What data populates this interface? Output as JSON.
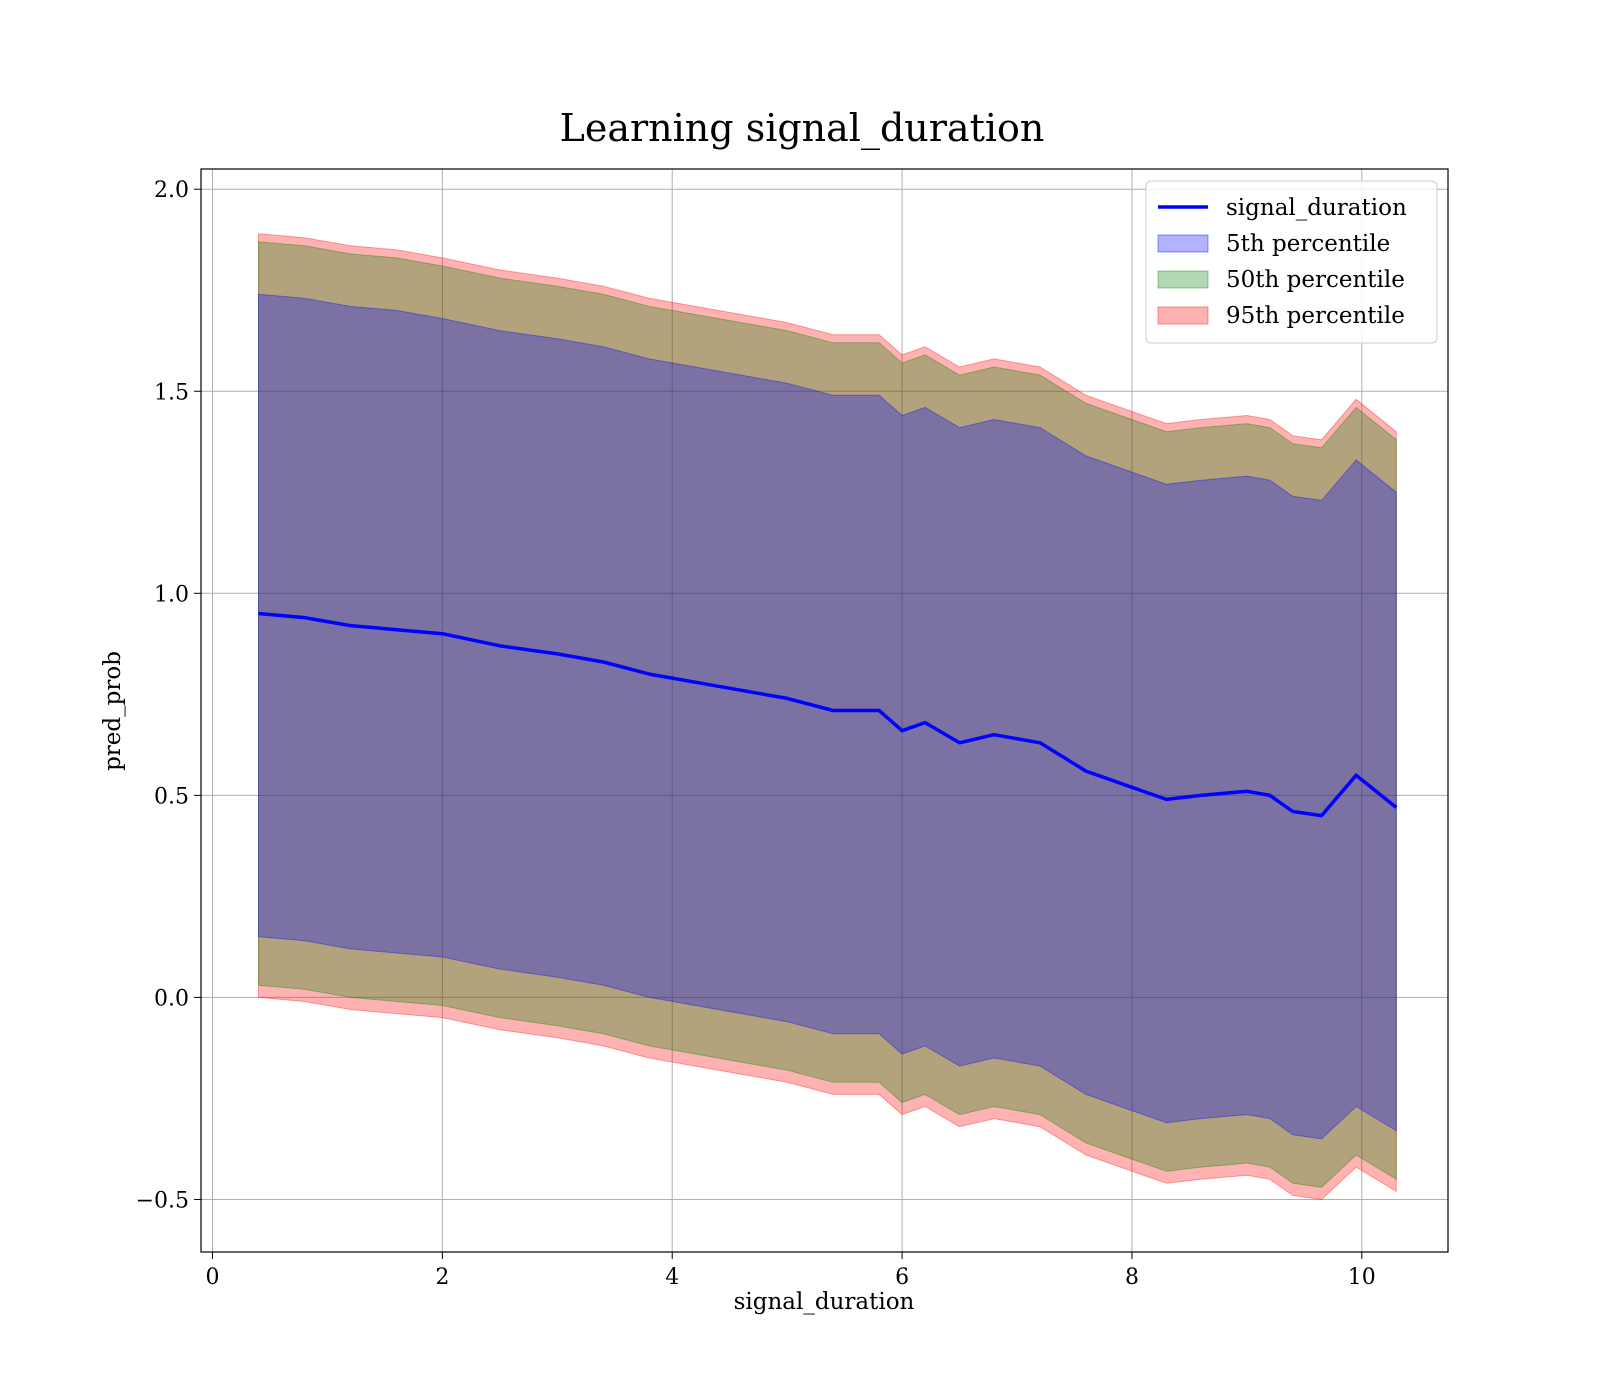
{
  "chart_data": {
    "type": "area",
    "title": "Learning signal_duration",
    "xlabel": "signal_duration",
    "ylabel": "pred_prob",
    "xlim": [
      -0.1,
      10.75
    ],
    "ylim": [
      -0.63,
      2.05
    ],
    "grid": true,
    "legend_position": "top-right",
    "x_ticks": [
      {
        "value": 0,
        "label": "0"
      },
      {
        "value": 2,
        "label": "2"
      },
      {
        "value": 4,
        "label": "4"
      },
      {
        "value": 6,
        "label": "6"
      },
      {
        "value": 8,
        "label": "8"
      },
      {
        "value": 10,
        "label": "10"
      }
    ],
    "y_ticks": [
      {
        "value": -0.5,
        "label": "−0.5"
      },
      {
        "value": 0.0,
        "label": "0.0"
      },
      {
        "value": 0.5,
        "label": "0.5"
      },
      {
        "value": 1.0,
        "label": "1.0"
      },
      {
        "value": 1.5,
        "label": "1.5"
      },
      {
        "value": 2.0,
        "label": "2.0"
      }
    ],
    "x": [
      0.4,
      0.8,
      1.2,
      1.6,
      2.0,
      2.5,
      3.0,
      3.4,
      3.8,
      4.2,
      4.6,
      5.0,
      5.4,
      5.8,
      6.0,
      6.2,
      6.5,
      6.8,
      7.2,
      7.6,
      8.0,
      8.3,
      8.6,
      9.0,
      9.2,
      9.4,
      9.65,
      9.95,
      10.3
    ],
    "series": [
      {
        "name": "signal_duration",
        "kind": "line",
        "color": "#0000ff",
        "values": [
          0.95,
          0.94,
          0.92,
          0.91,
          0.9,
          0.87,
          0.85,
          0.83,
          0.8,
          0.78,
          0.76,
          0.74,
          0.71,
          0.71,
          0.66,
          0.68,
          0.63,
          0.65,
          0.63,
          0.56,
          0.52,
          0.49,
          0.5,
          0.51,
          0.5,
          0.46,
          0.45,
          0.55,
          0.47
        ]
      },
      {
        "name": "95th percentile",
        "kind": "band",
        "color": "#ff0000",
        "opacity": 0.3,
        "upper": [
          1.89,
          1.88,
          1.86,
          1.85,
          1.83,
          1.8,
          1.78,
          1.76,
          1.73,
          1.71,
          1.69,
          1.67,
          1.64,
          1.64,
          1.59,
          1.61,
          1.56,
          1.58,
          1.56,
          1.49,
          1.45,
          1.42,
          1.43,
          1.44,
          1.43,
          1.39,
          1.38,
          1.48,
          1.4
        ],
        "lower": [
          0.0,
          -0.01,
          -0.03,
          -0.04,
          -0.05,
          -0.08,
          -0.1,
          -0.12,
          -0.15,
          -0.17,
          -0.19,
          -0.21,
          -0.24,
          -0.24,
          -0.29,
          -0.27,
          -0.32,
          -0.3,
          -0.32,
          -0.39,
          -0.43,
          -0.46,
          -0.45,
          -0.44,
          -0.45,
          -0.49,
          -0.5,
          -0.42,
          -0.48
        ]
      },
      {
        "name": "50th percentile",
        "kind": "band",
        "color": "#008000",
        "opacity": 0.3,
        "upper": [
          1.87,
          1.86,
          1.84,
          1.83,
          1.81,
          1.78,
          1.76,
          1.74,
          1.71,
          1.69,
          1.67,
          1.65,
          1.62,
          1.62,
          1.57,
          1.59,
          1.54,
          1.56,
          1.54,
          1.47,
          1.43,
          1.4,
          1.41,
          1.42,
          1.41,
          1.37,
          1.36,
          1.46,
          1.38
        ],
        "lower": [
          0.03,
          0.02,
          0.0,
          -0.01,
          -0.02,
          -0.05,
          -0.07,
          -0.09,
          -0.12,
          -0.14,
          -0.16,
          -0.18,
          -0.21,
          -0.21,
          -0.26,
          -0.24,
          -0.29,
          -0.27,
          -0.29,
          -0.36,
          -0.4,
          -0.43,
          -0.42,
          -0.41,
          -0.42,
          -0.46,
          -0.47,
          -0.39,
          -0.45
        ]
      },
      {
        "name": "5th percentile",
        "kind": "band",
        "color": "#0000ff",
        "opacity": 0.3,
        "upper": [
          1.74,
          1.73,
          1.71,
          1.7,
          1.68,
          1.65,
          1.63,
          1.61,
          1.58,
          1.56,
          1.54,
          1.52,
          1.49,
          1.49,
          1.44,
          1.46,
          1.41,
          1.43,
          1.41,
          1.34,
          1.3,
          1.27,
          1.28,
          1.29,
          1.28,
          1.24,
          1.23,
          1.33,
          1.25
        ],
        "lower": [
          0.15,
          0.14,
          0.12,
          0.11,
          0.1,
          0.07,
          0.05,
          0.03,
          0.0,
          -0.02,
          -0.04,
          -0.06,
          -0.09,
          -0.09,
          -0.14,
          -0.12,
          -0.17,
          -0.15,
          -0.17,
          -0.24,
          -0.28,
          -0.31,
          -0.3,
          -0.29,
          -0.3,
          -0.34,
          -0.35,
          -0.27,
          -0.33
        ]
      }
    ],
    "legend": [
      {
        "label": "signal_duration",
        "kind": "line",
        "color": "#0000ff"
      },
      {
        "label": "5th percentile",
        "kind": "patch",
        "color": "#0000ff"
      },
      {
        "label": "50th percentile",
        "kind": "patch",
        "color": "#008000"
      },
      {
        "label": "95th percentile",
        "kind": "patch",
        "color": "#ff0000"
      }
    ]
  }
}
